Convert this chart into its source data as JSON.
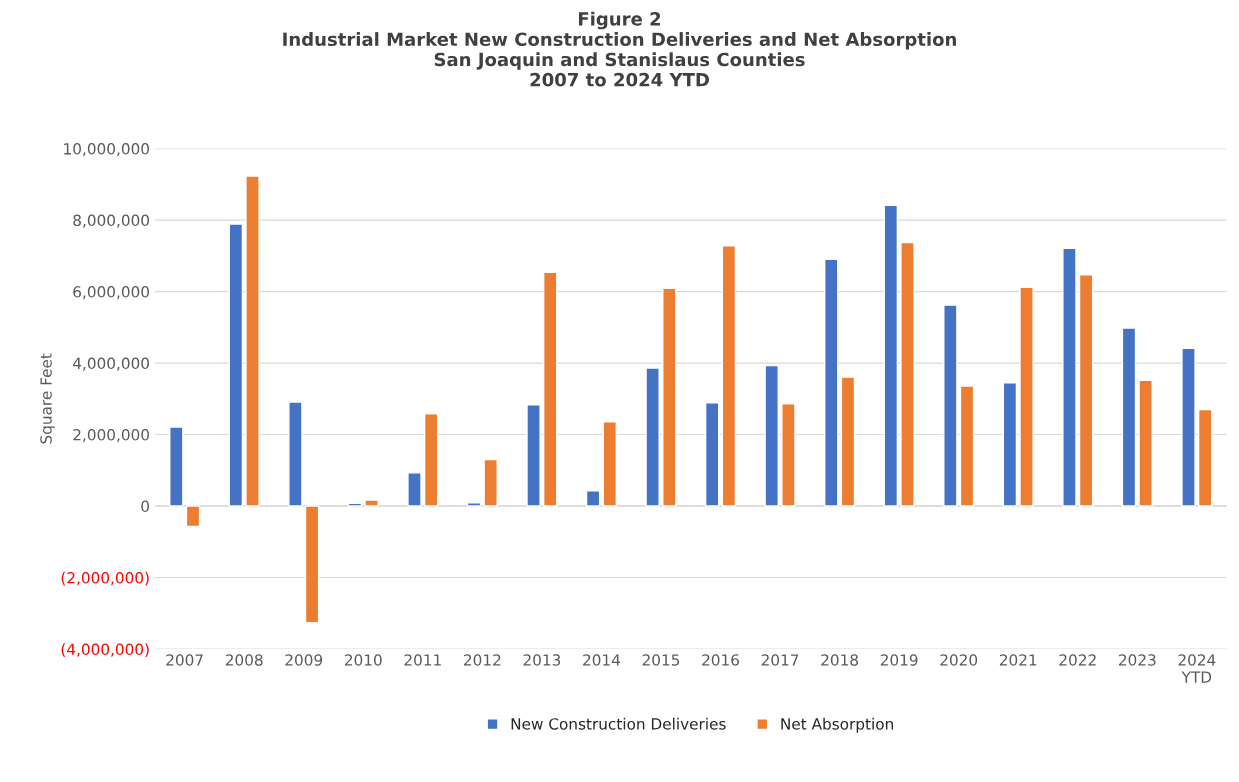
{
  "chart_data": {
    "type": "bar",
    "title": "Figure 2\nIndustrial Market New Construction Deliveries and Net Absorption\nSan Joaquin and Stanislaus Counties\n2007 to 2024 YTD",
    "ylabel": "Square Feet",
    "categories": [
      "2007",
      "2008",
      "2009",
      "2010",
      "2011",
      "2012",
      "2013",
      "2014",
      "2015",
      "2016",
      "2017",
      "2018",
      "2019",
      "2020",
      "2021",
      "2022",
      "2023",
      "2024\nYTD"
    ],
    "series": [
      {
        "name": "New Construction Deliveries",
        "color": "#4472c4",
        "values": [
          2210000,
          7890000,
          2910000,
          80000,
          930000,
          90000,
          2830000,
          430000,
          3860000,
          2890000,
          3930000,
          6900000,
          8410000,
          5620000,
          3450000,
          7210000,
          4980000,
          4410000
        ]
      },
      {
        "name": "Net Absorption",
        "color": "#ed7d31",
        "values": [
          -570000,
          9230000,
          -3260000,
          170000,
          2580000,
          1300000,
          6540000,
          2360000,
          6090000,
          7280000,
          2860000,
          3610000,
          7370000,
          3360000,
          6120000,
          6470000,
          3520000,
          2700000
        ]
      }
    ],
    "ylim": [
      -4000000,
      10000000
    ],
    "yticks": [
      {
        "value": -4000000,
        "label": "(4,000,000)"
      },
      {
        "value": -2000000,
        "label": "(2,000,000)"
      },
      {
        "value": 0,
        "label": "0"
      },
      {
        "value": 2000000,
        "label": "2,000,000"
      },
      {
        "value": 4000000,
        "label": "4,000,000"
      },
      {
        "value": 6000000,
        "label": "6,000,000"
      },
      {
        "value": 8000000,
        "label": "8,000,000"
      },
      {
        "value": 10000000,
        "label": "10,000,000"
      }
    ],
    "grid": "y",
    "legend": "bottom"
  }
}
